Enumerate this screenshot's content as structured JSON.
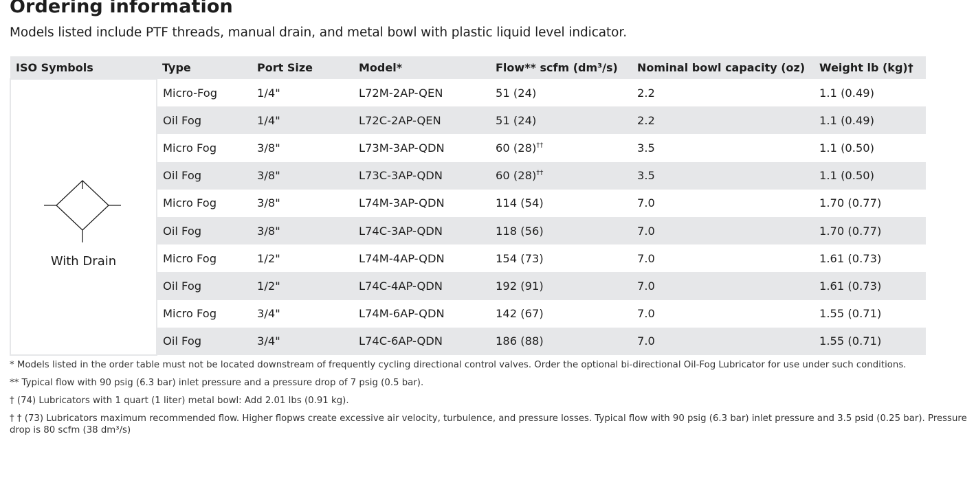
{
  "page": {
    "title": "Ordering information",
    "subtitle": "Models listed include PTF threads, manual drain, and metal bowl with plastic liquid level indicator."
  },
  "table": {
    "headers": [
      "ISO Symbols",
      "Type",
      "Port Size",
      "Model*",
      "Flow** scfm (dm³/s)",
      "Nominal bowl capacity (oz)",
      "Weight lb (kg)†"
    ],
    "symbol_label": "With Drain",
    "symbol_icon": "lubricator-with-drain-icon",
    "rows": [
      {
        "type": "Micro-Fog",
        "port": "1/4\"",
        "model": "L72M-2AP-QEN",
        "flow": "51 (24)",
        "flow_note": "",
        "capacity": "2.2",
        "weight": "1.1 (0.49)"
      },
      {
        "type": "Oil Fog",
        "port": "1/4\"",
        "model": "L72C-2AP-QEN",
        "flow": "51 (24)",
        "flow_note": "",
        "capacity": "2.2",
        "weight": "1.1 (0.49)"
      },
      {
        "type": "Micro Fog",
        "port": "3/8\"",
        "model": "L73M-3AP-QDN",
        "flow": "60 (28)",
        "flow_note": "††",
        "capacity": "3.5",
        "weight": "1.1 (0.50)"
      },
      {
        "type": "Oil Fog",
        "port": "3/8\"",
        "model": "L73C-3AP-QDN",
        "flow": "60 (28)",
        "flow_note": "††",
        "capacity": "3.5",
        "weight": "1.1 (0.50)"
      },
      {
        "type": "Micro Fog",
        "port": "3/8\"",
        "model": "L74M-3AP-QDN",
        "flow": "114 (54)",
        "flow_note": "",
        "capacity": "7.0",
        "weight": "1.70 (0.77)"
      },
      {
        "type": "Oil Fog",
        "port": "3/8\"",
        "model": "L74C-3AP-QDN",
        "flow": "118 (56)",
        "flow_note": "",
        "capacity": "7.0",
        "weight": "1.70 (0.77)"
      },
      {
        "type": "Micro Fog",
        "port": "1/2\"",
        "model": "L74M-4AP-QDN",
        "flow": "154 (73)",
        "flow_note": "",
        "capacity": "7.0",
        "weight": "1.61 (0.73)"
      },
      {
        "type": "Oil Fog",
        "port": "1/2\"",
        "model": "L74C-4AP-QDN",
        "flow": "192 (91)",
        "flow_note": "",
        "capacity": "7.0",
        "weight": "1.61 (0.73)"
      },
      {
        "type": "Micro Fog",
        "port": "3/4\"",
        "model": "L74M-6AP-QDN",
        "flow": "142 (67)",
        "flow_note": "",
        "capacity": "7.0",
        "weight": "1.55 (0.71)"
      },
      {
        "type": "Oil Fog",
        "port": "3/4\"",
        "model": "L74C-6AP-QDN",
        "flow": "186 (88)",
        "flow_note": "",
        "capacity": "7.0",
        "weight": "1.55 (0.71)"
      }
    ]
  },
  "notes": [
    "* Models listed in the order table must not be located downstream of frequently cycling directional control valves. Order the optional bi-directional Oil-Fog Lubricator for use under such conditions.",
    "** Typical flow with 90 psig (6.3 bar) inlet pressure and a pressure drop of 7 psig (0.5 bar).",
    "† (74) Lubricators with 1 quart (1 liter) metal bowl: Add 2.01 lbs (0.91 kg).",
    "† † (73) Lubricators maximum recommended flow. Higher flopws create excessive air velocity, turbulence, and pressure losses. Typical flow with 90 psig (6.3 bar) inlet pressure and 3.5 psid (0.25 bar). Pressure drop is 80 scfm (38 dm³/s)"
  ],
  "colors": {
    "header_bg": "#e6e7e9",
    "stripe_bg": "#e6e7e9",
    "text": "#1d1d1d"
  }
}
